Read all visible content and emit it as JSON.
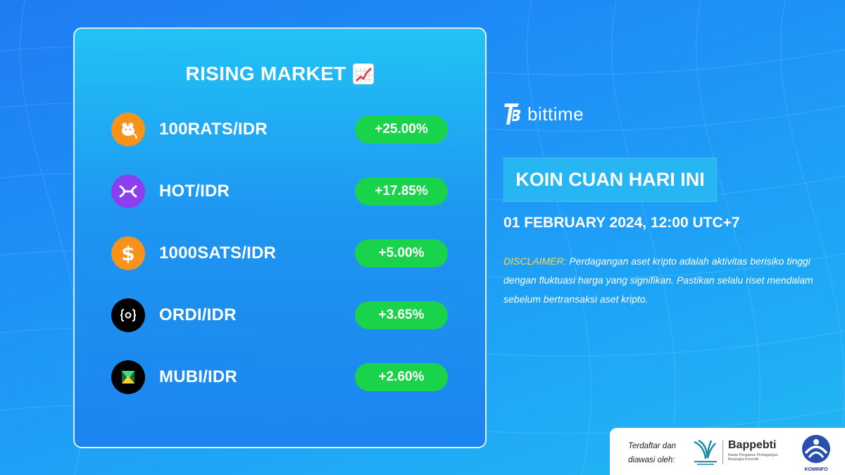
{
  "colors": {
    "background": "#1e90f7",
    "positive_badge": "#19d34a",
    "headline_bg": "#27b6f1",
    "disclaimer_label": "#ffd84a"
  },
  "card": {
    "title": "RISING MARKET",
    "title_icon": "chart-increasing-icon"
  },
  "gainers": [
    {
      "pair": "100RATS/IDR",
      "change": "+25.00%",
      "icon": "rat-coin-icon",
      "icon_color": "#f7931a"
    },
    {
      "pair": "HOT/IDR",
      "change": "+17.85%",
      "icon": "holo-coin-icon",
      "icon_color": "#8a3ff0"
    },
    {
      "pair": "1000SATS/IDR",
      "change": "+5.00%",
      "icon": "dollar-coin-icon",
      "icon_color": "#f7931a"
    },
    {
      "pair": "ORDI/IDR",
      "change": "+3.65%",
      "icon": "ordi-coin-icon",
      "icon_color": "#000000"
    },
    {
      "pair": "MUBI/IDR",
      "change": "+2.60%",
      "icon": "mubi-coin-icon",
      "icon_color": "#000000"
    }
  ],
  "brand": {
    "name": "bittime",
    "icon": "bittime-logo-icon"
  },
  "headline": "KOIN CUAN HARI INI",
  "date": "01 FEBRUARY 2024, 12:00 UTC+7",
  "disclaimer": {
    "label": "DISCLAIMER:",
    "text": "Perdagangan aset kripto adalah aktivitas berisiko tinggi dengan fluktuasi harga yang signifikan. Pastikan selalu riset mendalam sebelum bertransaksi aset kripto."
  },
  "footer": {
    "registered_text": "Terdaftar dan diawasi oleh:",
    "bappebti_name": "Bappebti",
    "bappebti_sub": "Badan Pengawas Perdagangan Berjangka Komoditi",
    "kominfo": "KOMINFO"
  }
}
